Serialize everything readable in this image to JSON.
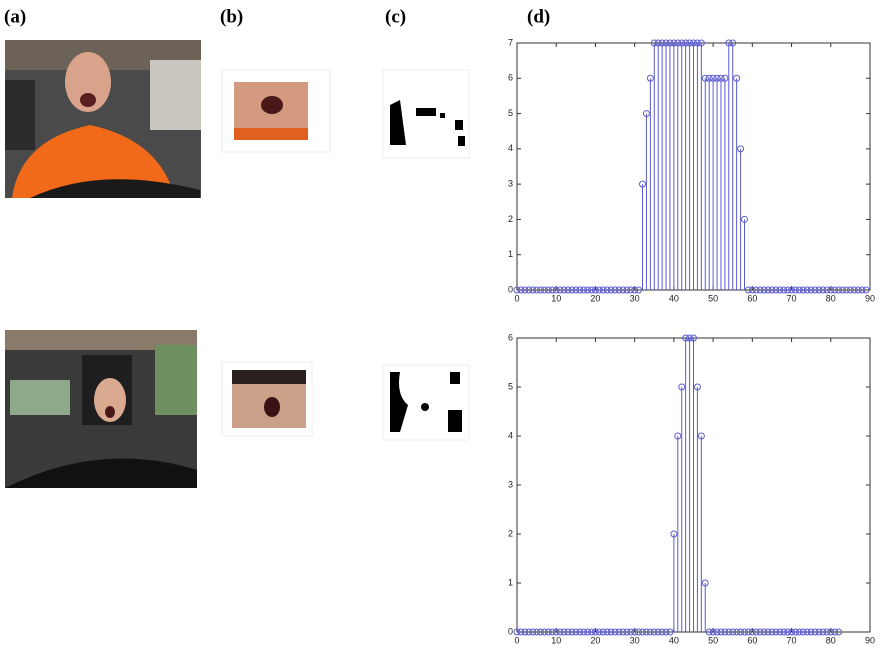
{
  "panel_labels": [
    "(a)",
    "(b)",
    "(c)",
    "(d)"
  ],
  "chart_data": [
    {
      "type": "stem",
      "color": "#5b5bd0",
      "x": [
        0,
        1,
        2,
        3,
        4,
        5,
        6,
        7,
        8,
        9,
        10,
        11,
        12,
        13,
        14,
        15,
        16,
        17,
        18,
        19,
        20,
        21,
        22,
        23,
        24,
        25,
        26,
        27,
        28,
        29,
        30,
        31,
        32,
        33,
        34,
        35,
        36,
        37,
        38,
        39,
        40,
        41,
        42,
        43,
        44,
        45,
        46,
        47,
        48,
        49,
        50,
        51,
        52,
        53,
        54,
        55,
        56,
        57,
        58,
        59,
        60,
        61,
        62,
        63,
        64,
        65,
        66,
        67,
        68,
        69,
        70,
        71,
        72,
        73,
        74,
        75,
        76,
        77,
        78,
        79,
        80,
        81,
        82,
        83,
        84,
        85,
        86,
        87,
        88,
        89
      ],
      "values": [
        0,
        0,
        0,
        0,
        0,
        0,
        0,
        0,
        0,
        0,
        0,
        0,
        0,
        0,
        0,
        0,
        0,
        0,
        0,
        0,
        0,
        0,
        0,
        0,
        0,
        0,
        0,
        0,
        0,
        0,
        0,
        0,
        3,
        5,
        6,
        7,
        7,
        7,
        7,
        7,
        7,
        7,
        7,
        7,
        7,
        7,
        7,
        7,
        6,
        6,
        6,
        6,
        6,
        6,
        7,
        7,
        6,
        4,
        2,
        0,
        0,
        0,
        0,
        0,
        0,
        0,
        0,
        0,
        0,
        0,
        0,
        0,
        0,
        0,
        0,
        0,
        0,
        0,
        0,
        0,
        0,
        0,
        0,
        0,
        0,
        0,
        0,
        0,
        0,
        0
      ],
      "xlim": [
        0,
        90
      ],
      "ylim": [
        0,
        7
      ],
      "xticks": [
        0,
        10,
        20,
        30,
        40,
        50,
        60,
        70,
        80,
        90
      ],
      "yticks": [
        0,
        1,
        2,
        3,
        4,
        5,
        6,
        7
      ]
    },
    {
      "type": "stem",
      "color": "#5b5bd0",
      "x": [
        0,
        1,
        2,
        3,
        4,
        5,
        6,
        7,
        8,
        9,
        10,
        11,
        12,
        13,
        14,
        15,
        16,
        17,
        18,
        19,
        20,
        21,
        22,
        23,
        24,
        25,
        26,
        27,
        28,
        29,
        30,
        31,
        32,
        33,
        34,
        35,
        36,
        37,
        38,
        39,
        40,
        41,
        42,
        43,
        44,
        45,
        46,
        47,
        48,
        49,
        50,
        51,
        52,
        53,
        54,
        55,
        56,
        57,
        58,
        59,
        60,
        61,
        62,
        63,
        64,
        65,
        66,
        67,
        68,
        69,
        70,
        71,
        72,
        73,
        74,
        75,
        76,
        77,
        78,
        79,
        80,
        81,
        82
      ],
      "values": [
        0,
        0,
        0,
        0,
        0,
        0,
        0,
        0,
        0,
        0,
        0,
        0,
        0,
        0,
        0,
        0,
        0,
        0,
        0,
        0,
        0,
        0,
        0,
        0,
        0,
        0,
        0,
        0,
        0,
        0,
        0,
        0,
        0,
        0,
        0,
        0,
        0,
        0,
        0,
        0,
        2,
        4,
        5,
        6,
        6,
        6,
        5,
        4,
        1,
        0,
        0,
        0,
        0,
        0,
        0,
        0,
        0,
        0,
        0,
        0,
        0,
        0,
        0,
        0,
        0,
        0,
        0,
        0,
        0,
        0,
        0,
        0,
        0,
        0,
        0,
        0,
        0,
        0,
        0,
        0,
        0,
        0,
        0
      ],
      "xlim": [
        0,
        90
      ],
      "ylim": [
        0,
        6
      ],
      "xticks": [
        0,
        10,
        20,
        30,
        40,
        50,
        60,
        70,
        80,
        90
      ],
      "yticks": [
        0,
        1,
        2,
        3,
        4,
        5,
        6
      ]
    }
  ]
}
